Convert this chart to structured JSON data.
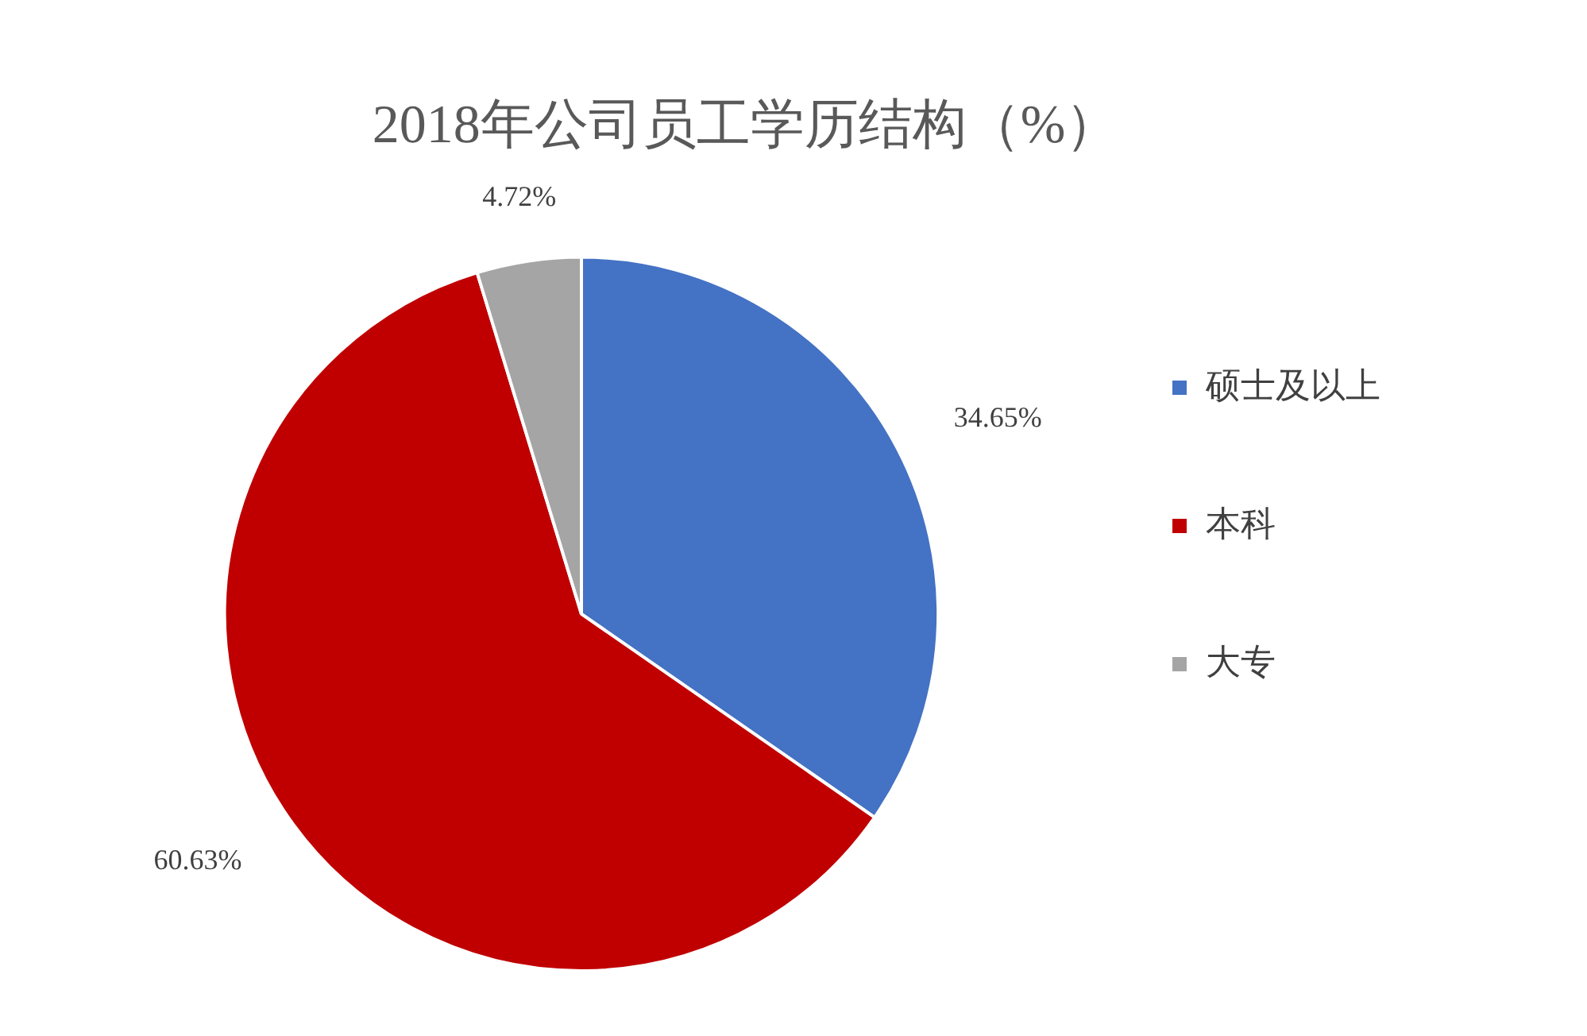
{
  "chart_data": {
    "type": "pie",
    "title": "2018年公司员工学历结构（%）",
    "categories": [
      "硕士及以上",
      "本科",
      "大专"
    ],
    "values": [
      34.65,
      60.63,
      4.72
    ],
    "colors": [
      "#4472c4",
      "#c00000",
      "#a5a5a5"
    ],
    "value_labels": [
      "34.65%",
      "60.63%",
      "4.72%"
    ],
    "legend": "right"
  }
}
